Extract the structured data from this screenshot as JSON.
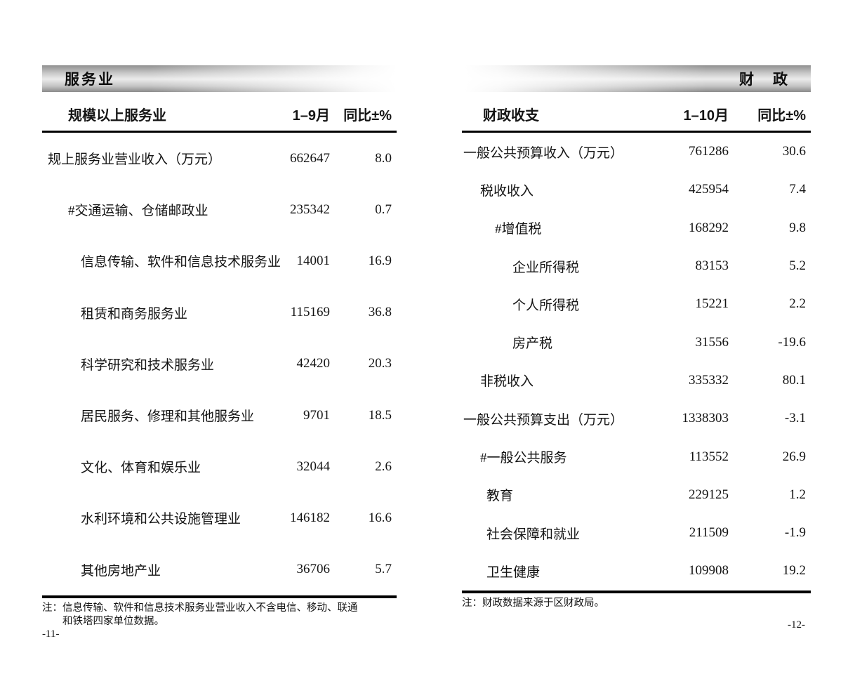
{
  "pages": {
    "left": {
      "section_title": "服务业",
      "table": {
        "title": "规模以上服务业",
        "period_header": "1–9月",
        "yoy_header": "同比±%",
        "rows": [
          {
            "label": "规上服务业营业收入（万元）",
            "value": "662647",
            "yoy": "8.0",
            "indent": "0"
          },
          {
            "label": "#交通运输、仓储邮政业",
            "value": "235342",
            "yoy": "0.7",
            "indent": "1"
          },
          {
            "label": "信息传输、软件和信息技术服务业",
            "value": "14001",
            "yoy": "16.9",
            "indent": "2"
          },
          {
            "label": "租赁和商务服务业",
            "value": "115169",
            "yoy": "36.8",
            "indent": "2"
          },
          {
            "label": "科学研究和技术服务业",
            "value": "42420",
            "yoy": "20.3",
            "indent": "2"
          },
          {
            "label": "居民服务、修理和其他服务业",
            "value": "9701",
            "yoy": "18.5",
            "indent": "2"
          },
          {
            "label": "文化、体育和娱乐业",
            "value": "32044",
            "yoy": "2.6",
            "indent": "2"
          },
          {
            "label": "水利环境和公共设施管理业",
            "value": "146182",
            "yoy": "16.6",
            "indent": "2"
          },
          {
            "label": "其他房地产业",
            "value": "36706",
            "yoy": "5.7",
            "indent": "2"
          }
        ]
      },
      "note_label": "注：",
      "note_lines": [
        "信息传输、软件和信息技术服务业营业收入不含电信、移动、联通",
        "和铁塔四家单位数据。"
      ],
      "page_number": "-11-"
    },
    "right": {
      "section_title": "财　政",
      "table": {
        "title": "财政收支",
        "period_header": "1–10月",
        "yoy_header": "同比±%",
        "rows": [
          {
            "label": "一般公共预算收入（万元）",
            "value": "761286",
            "yoy": "30.6",
            "indent": "0"
          },
          {
            "label": "税收收入",
            "value": "425954",
            "yoy": "7.4",
            "indent": "1"
          },
          {
            "label": "#增值税",
            "value": "168292",
            "yoy": "9.8",
            "indent": "2"
          },
          {
            "label": "企业所得税",
            "value": "83153",
            "yoy": "5.2",
            "indent": "3"
          },
          {
            "label": "个人所得税",
            "value": "15221",
            "yoy": "2.2",
            "indent": "3"
          },
          {
            "label": "房产税",
            "value": "31556",
            "yoy": "-19.6",
            "indent": "3"
          },
          {
            "label": "非税收入",
            "value": "335332",
            "yoy": "80.1",
            "indent": "1"
          },
          {
            "label": "一般公共预算支出（万元）",
            "value": "1338303",
            "yoy": "-3.1",
            "indent": "0"
          },
          {
            "label": "#一般公共服务",
            "value": "113552",
            "yoy": "26.9",
            "indent": "1"
          },
          {
            "label": "教育",
            "value": "229125",
            "yoy": "1.2",
            "indent": "1b"
          },
          {
            "label": "社会保障和就业",
            "value": "211509",
            "yoy": "-1.9",
            "indent": "1b"
          },
          {
            "label": "卫生健康",
            "value": "109908",
            "yoy": "19.2",
            "indent": "1b"
          }
        ]
      },
      "note_label": "注：",
      "note_lines": [
        "财政数据来源于区财政局。"
      ],
      "page_number": "-12-"
    }
  }
}
